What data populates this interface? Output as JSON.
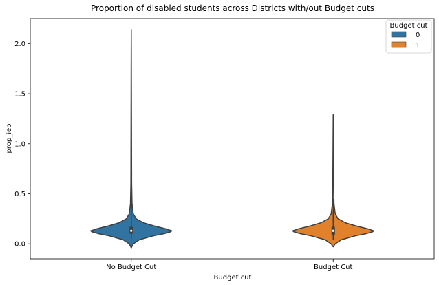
{
  "chart_data": {
    "type": "violin",
    "title": "Proportion of disabled students across Districts with/out Budget cuts",
    "xlabel": "Budget cut",
    "ylabel": "prop_iep",
    "categories": [
      "No Budget Cut",
      "Budget Cut"
    ],
    "ylim": [
      -0.15,
      2.25
    ],
    "yticks": [
      "0.0",
      "0.5",
      "1.0",
      "1.5",
      "2.0"
    ],
    "legend": {
      "title": "Budget cut",
      "placement": "top-right",
      "entries": [
        {
          "label": "0",
          "color": "#3274a1"
        },
        {
          "label": "1",
          "color": "#e1812c"
        }
      ]
    },
    "series": [
      {
        "category": "No Budget Cut",
        "hue": "0",
        "color": "#3274a1",
        "min": -0.04,
        "max": 2.14,
        "q1": 0.1,
        "median": 0.13,
        "q3": 0.17,
        "whisker_low": 0.05,
        "whisker_high": 1.0,
        "density_profile": [
          [
            -0.04,
            0.0
          ],
          [
            0.0,
            0.05
          ],
          [
            0.04,
            0.2
          ],
          [
            0.08,
            0.55
          ],
          [
            0.1,
            0.8
          ],
          [
            0.12,
            0.97
          ],
          [
            0.13,
            1.0
          ],
          [
            0.15,
            0.85
          ],
          [
            0.18,
            0.55
          ],
          [
            0.21,
            0.3
          ],
          [
            0.25,
            0.12
          ],
          [
            0.3,
            0.05
          ],
          [
            0.4,
            0.02
          ],
          [
            0.6,
            0.01
          ],
          [
            2.14,
            0.0
          ]
        ]
      },
      {
        "category": "Budget Cut",
        "hue": "1",
        "color": "#e1812c",
        "min": -0.03,
        "max": 1.29,
        "q1": 0.09,
        "median": 0.13,
        "q3": 0.17,
        "whisker_low": 0.04,
        "whisker_high": 0.45,
        "density_profile": [
          [
            -0.03,
            0.0
          ],
          [
            0.0,
            0.05
          ],
          [
            0.04,
            0.2
          ],
          [
            0.08,
            0.55
          ],
          [
            0.1,
            0.8
          ],
          [
            0.12,
            0.97
          ],
          [
            0.13,
            1.0
          ],
          [
            0.15,
            0.85
          ],
          [
            0.18,
            0.55
          ],
          [
            0.21,
            0.3
          ],
          [
            0.25,
            0.12
          ],
          [
            0.3,
            0.05
          ],
          [
            0.4,
            0.02
          ],
          [
            0.6,
            0.01
          ],
          [
            1.29,
            0.0
          ]
        ]
      }
    ]
  }
}
